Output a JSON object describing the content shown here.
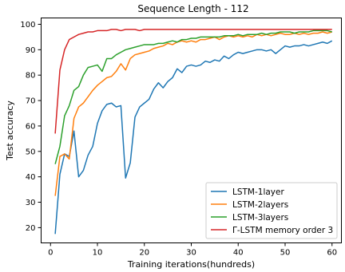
{
  "chart_data": {
    "type": "line",
    "title": "Sequence Length - 112",
    "xlabel": "Training iterations(hundreds)",
    "ylabel": "Test accuracy",
    "xlim": [
      -2,
      62
    ],
    "ylim": [
      14,
      102.5
    ],
    "xticks": [
      0,
      10,
      20,
      30,
      40,
      50,
      60
    ],
    "yticks": [
      20,
      30,
      40,
      50,
      60,
      70,
      80,
      90,
      100
    ],
    "grid": false,
    "legend_position": "lower-right",
    "series": [
      {
        "name": "LSTM-1layer",
        "color": "#1f77b4",
        "x": [
          1,
          2,
          3,
          4,
          5,
          6,
          7,
          8,
          9,
          10,
          11,
          12,
          13,
          14,
          15,
          16,
          17,
          18,
          19,
          20,
          21,
          22,
          23,
          24,
          25,
          26,
          27,
          28,
          29,
          30,
          31,
          32,
          33,
          34,
          35,
          36,
          37,
          38,
          39,
          40,
          41,
          42,
          43,
          44,
          45,
          46,
          47,
          48,
          49,
          50,
          51,
          52,
          53,
          54,
          55,
          56,
          57,
          58,
          59,
          60
        ],
        "values": [
          17.5,
          41,
          49,
          48,
          58,
          40,
          42.5,
          48.5,
          52,
          61,
          66,
          68.5,
          69,
          67.5,
          68,
          39.5,
          45.5,
          63.5,
          67.5,
          69,
          70.5,
          74.5,
          77,
          75,
          77.5,
          79,
          82.5,
          81,
          83.5,
          84,
          83.5,
          84,
          85.5,
          85,
          86,
          85.5,
          87.5,
          86.5,
          88,
          89,
          88.5,
          89,
          89.5,
          90,
          90,
          89.5,
          90,
          88.5,
          90,
          91.5,
          91,
          91.5,
          91.5,
          92,
          91.5,
          92,
          92.5,
          93,
          92.5,
          93.5
        ]
      },
      {
        "name": "LSTM-2layers",
        "color": "#ff7f0e",
        "x": [
          1,
          2,
          3,
          4,
          5,
          6,
          7,
          8,
          9,
          10,
          11,
          12,
          13,
          14,
          15,
          16,
          17,
          18,
          19,
          20,
          21,
          22,
          23,
          24,
          25,
          26,
          27,
          28,
          29,
          30,
          31,
          32,
          33,
          34,
          35,
          36,
          37,
          38,
          39,
          40,
          41,
          42,
          43,
          44,
          45,
          46,
          47,
          48,
          49,
          50,
          51,
          52,
          53,
          54,
          55,
          56,
          57,
          58,
          59,
          60
        ],
        "values": [
          32.5,
          48,
          49,
          47,
          63,
          67.5,
          69,
          71.5,
          74,
          76,
          77.5,
          79,
          79.5,
          81.5,
          84.5,
          82,
          86.5,
          88,
          88.5,
          89,
          89.5,
          90.5,
          91,
          91.5,
          92.5,
          92,
          93,
          93.5,
          93,
          93.5,
          93,
          94,
          94,
          94.5,
          95,
          94,
          95,
          95.5,
          95,
          95.5,
          95,
          95.5,
          95,
          96,
          95.5,
          96,
          95.5,
          96,
          96.5,
          96,
          96,
          96.5,
          96,
          96.5,
          96,
          96.5,
          96.5,
          97,
          96.5,
          97
        ]
      },
      {
        "name": "LSTM-3layers",
        "color": "#2ca02c",
        "x": [
          1,
          2,
          3,
          4,
          5,
          6,
          7,
          8,
          9,
          10,
          11,
          12,
          13,
          14,
          15,
          16,
          17,
          18,
          19,
          20,
          21,
          22,
          23,
          24,
          25,
          26,
          27,
          28,
          29,
          30,
          31,
          32,
          33,
          34,
          35,
          36,
          37,
          38,
          39,
          40,
          41,
          42,
          43,
          44,
          45,
          46,
          47,
          48,
          49,
          50,
          51,
          52,
          53,
          54,
          55,
          56,
          57,
          58,
          59,
          60
        ],
        "values": [
          45,
          52,
          64,
          68,
          74,
          75.5,
          80,
          83,
          83.5,
          84,
          81.5,
          86.5,
          86.5,
          88,
          89,
          90,
          90.5,
          91,
          91.5,
          92,
          92,
          92,
          92.5,
          92.5,
          93,
          93.5,
          93,
          94,
          94,
          94.5,
          94.5,
          95,
          95,
          95,
          95,
          95,
          95.5,
          95.5,
          95.5,
          96,
          95.5,
          96,
          96,
          96,
          96.5,
          96,
          96.5,
          96.5,
          97,
          97,
          97,
          96.5,
          97,
          97,
          97,
          97.5,
          97.5,
          97.5,
          97.5,
          97
        ]
      },
      {
        "name": "Γ-LSTM memory order 3",
        "color": "#d62728",
        "x": [
          1,
          2,
          3,
          4,
          5,
          6,
          7,
          8,
          9,
          10,
          11,
          12,
          13,
          14,
          15,
          16,
          17,
          18,
          19,
          20,
          21,
          22,
          23,
          24,
          25,
          26,
          27,
          28,
          29,
          30,
          31,
          32,
          33,
          34,
          35,
          36,
          37,
          38,
          39,
          40,
          41,
          42,
          43,
          44,
          45,
          46,
          47,
          48,
          49,
          50,
          51,
          52,
          53,
          54,
          55,
          56,
          57,
          58,
          59,
          60
        ],
        "values": [
          57,
          82,
          90,
          94,
          95,
          96,
          96.5,
          97,
          97,
          97.5,
          97.5,
          97.5,
          98,
          98,
          97.5,
          98,
          98,
          98,
          97.5,
          98,
          98,
          98,
          98,
          98,
          98,
          98,
          98,
          98,
          98,
          98,
          98,
          98,
          98,
          98,
          98,
          98,
          98,
          98,
          98,
          98,
          98,
          98,
          98,
          98,
          98,
          98,
          98,
          98,
          98,
          98,
          98,
          98,
          98,
          98,
          98,
          98,
          98,
          98,
          98,
          98
        ]
      }
    ]
  }
}
